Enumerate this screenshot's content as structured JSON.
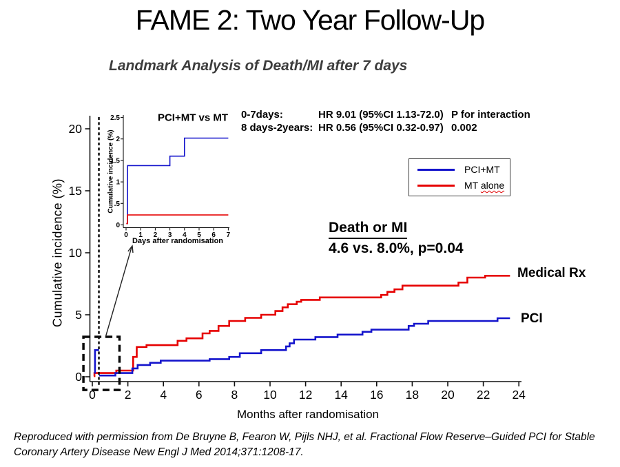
{
  "title": "FAME 2: Two Year Follow-Up",
  "subtitle": "Landmark Analysis of Death/MI after 7 days",
  "hr_block": {
    "row1_label": "0-7days:",
    "row1_value": "HR 9.01 (95%CI 1.13-72.0)",
    "row2_label": "8 days-2years:",
    "row2_value": "HR 0.56 (95%CI 0.32-0.97)",
    "p_interaction_label": "P for interaction",
    "p_interaction_value": "0.002"
  },
  "result_block": {
    "heading": "Death or MI",
    "detail": "4.6 vs. 8.0%, p=0.04"
  },
  "curve_labels": {
    "medical": "Medical Rx",
    "pci": "PCI"
  },
  "legend": {
    "item1_label": "PCI+MT",
    "item2_label_prefix": "MT ",
    "item2_label_wavy": "alone",
    "blue": "#1414cc",
    "red": "#e60000"
  },
  "footnote_line1": "Reproduced with permission from De Bruyne B, Fearon W, Pijls NHJ, et al. Fractional Flow Reserve–Guided PCI for Stable",
  "footnote_line2": "Coronary Artery Disease New Engl J Med 2014;371:1208-17.",
  "chart_data": [
    {
      "id": "main",
      "type": "line",
      "title": "",
      "xlabel": "Months after randomisation",
      "ylabel": "Cumulative  incidence  (%)",
      "xlim": [
        0,
        24
      ],
      "ylim": [
        0,
        20
      ],
      "grid": false,
      "xticks": {
        "values": [
          0,
          2,
          4,
          6,
          8,
          10,
          12,
          14,
          16,
          18,
          20,
          22,
          24
        ]
      },
      "yticks": {
        "values": [
          0,
          5,
          10,
          15,
          20
        ]
      },
      "dashed_vline_at_month": 0.37,
      "zoom_box": {
        "x": [
          -0.5,
          1.53
        ],
        "y": [
          -1.06,
          3.22
        ]
      },
      "series": [
        {
          "name": "Medical Rx (MT alone)",
          "color": "#e60000",
          "mode": "step",
          "end_x": 23.5,
          "points": [
            [
              0.08,
              0.05
            ],
            [
              0.12,
              0.3
            ],
            [
              1.35,
              0.5
            ],
            [
              2.3,
              1.6
            ],
            [
              2.5,
              2.4
            ],
            [
              3.05,
              2.55
            ],
            [
              4.8,
              2.9
            ],
            [
              5.3,
              3.1
            ],
            [
              6.2,
              3.5
            ],
            [
              6.6,
              3.7
            ],
            [
              7.1,
              4.1
            ],
            [
              7.7,
              4.5
            ],
            [
              8.6,
              4.75
            ],
            [
              9.5,
              5.0
            ],
            [
              10.3,
              5.3
            ],
            [
              10.7,
              5.6
            ],
            [
              11.0,
              5.85
            ],
            [
              11.5,
              6.05
            ],
            [
              11.75,
              6.2
            ],
            [
              12.8,
              6.4
            ],
            [
              16.25,
              6.6
            ],
            [
              16.6,
              6.85
            ],
            [
              17.0,
              7.05
            ],
            [
              17.45,
              7.35
            ],
            [
              20.6,
              7.6
            ],
            [
              21.1,
              8.0
            ],
            [
              22.1,
              8.15
            ]
          ]
        },
        {
          "name": "PCI (PCI+MT) landmark after 7 days",
          "color": "#1414cc",
          "mode": "step",
          "end_x": 23.5,
          "points": [
            [
              0.38,
              0.1
            ],
            [
              1.3,
              0.3
            ],
            [
              2.25,
              0.67
            ],
            [
              2.55,
              0.95
            ],
            [
              3.25,
              1.13
            ],
            [
              3.85,
              1.3
            ],
            [
              6.6,
              1.42
            ],
            [
              7.7,
              1.6
            ],
            [
              8.3,
              1.9
            ],
            [
              9.5,
              2.15
            ],
            [
              10.9,
              2.45
            ],
            [
              11.1,
              2.7
            ],
            [
              11.35,
              3.0
            ],
            [
              12.55,
              3.2
            ],
            [
              13.8,
              3.4
            ],
            [
              15.2,
              3.63
            ],
            [
              15.7,
              3.8
            ],
            [
              17.8,
              4.1
            ],
            [
              18.1,
              4.28
            ],
            [
              18.9,
              4.5
            ],
            [
              22.8,
              4.72
            ]
          ]
        },
        {
          "name": "PCI+MT days 0-7 spike",
          "color": "#1414cc",
          "mode": "line",
          "points": [
            [
              0.15,
              0.25
            ],
            [
              0.15,
              2.15
            ],
            [
              0.38,
              2.15
            ]
          ]
        }
      ]
    },
    {
      "id": "inset",
      "type": "line",
      "title": "PCI+MT vs MT",
      "xlabel": "Days after randomisation",
      "ylabel": "Cumulative incidence (%)",
      "xlim": [
        0,
        7
      ],
      "ylim": [
        0,
        2.5
      ],
      "grid": false,
      "xticks": {
        "values": [
          0,
          1,
          2,
          3,
          4,
          5,
          6,
          7
        ]
      },
      "yticks": {
        "values": [
          0,
          0.5,
          1,
          1.5,
          2,
          2.5
        ],
        "labels": [
          "0",
          ".5",
          "1",
          "1.5",
          "2",
          "2.5"
        ]
      },
      "series": [
        {
          "name": "PCI+MT",
          "color": "#1414cc",
          "mode": "step",
          "end_x": 7,
          "points": [
            [
              0.02,
              0.03
            ],
            [
              0.1,
              1.38
            ],
            [
              3.0,
              1.6
            ],
            [
              4.0,
              2.02
            ]
          ]
        },
        {
          "name": "MT alone",
          "color": "#e60000",
          "mode": "step",
          "end_x": 7,
          "points": [
            [
              0.02,
              0.03
            ],
            [
              0.1,
              0.23
            ]
          ]
        }
      ]
    }
  ]
}
